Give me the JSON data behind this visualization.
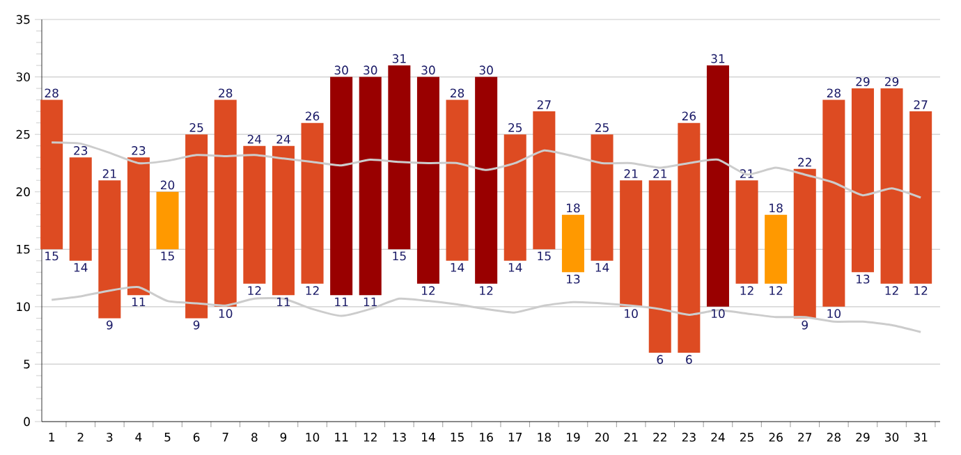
{
  "chart_data": {
    "type": "bar",
    "categories": [
      "1",
      "2",
      "3",
      "4",
      "5",
      "6",
      "7",
      "8",
      "9",
      "10",
      "11",
      "12",
      "13",
      "14",
      "15",
      "16",
      "17",
      "18",
      "19",
      "20",
      "21",
      "22",
      "23",
      "24",
      "25",
      "26",
      "27",
      "28",
      "29",
      "30",
      "31"
    ],
    "series": [
      {
        "values": [
          13,
          9,
          12,
          12,
          5,
          16,
          18,
          12,
          13,
          14,
          19,
          19,
          16,
          18,
          14,
          18,
          11,
          12,
          5,
          11,
          11,
          15,
          20,
          21,
          9,
          6,
          13,
          18,
          16,
          17,
          15
        ],
        "base": [
          15,
          14,
          9,
          11,
          15,
          9,
          10,
          12,
          11,
          12,
          11,
          11,
          15,
          12,
          14,
          12,
          14,
          15,
          13,
          14,
          10,
          6,
          6,
          10,
          12,
          12,
          9,
          10,
          13,
          12,
          12
        ],
        "colors": [
          "#dd4b22",
          "#dd4b22",
          "#dd4b22",
          "#dd4b22",
          "#ff9900",
          "#dd4b22",
          "#dd4b22",
          "#dd4b22",
          "#dd4b22",
          "#dd4b22",
          "#990000",
          "#990000",
          "#990000",
          "#990000",
          "#dd4b22",
          "#990000",
          "#dd4b22",
          "#dd4b22",
          "#ff9900",
          "#dd4b22",
          "#dd4b22",
          "#dd4b22",
          "#dd4b22",
          "#990000",
          "#dd4b22",
          "#ff9900",
          "#dd4b22",
          "#dd4b22",
          "#dd4b22",
          "#dd4b22",
          "#dd4b22"
        ],
        "value_labels": [
          "28",
          "23",
          "21",
          "23",
          "20",
          "25",
          "28",
          "24",
          "24",
          "26",
          "30",
          "30",
          "31",
          "30",
          "28",
          "30",
          "25",
          "27",
          "18",
          "25",
          "21",
          "21",
          "26",
          "31",
          "21",
          "18",
          "22",
          "28",
          "29",
          "29",
          "27"
        ]
      },
      {
        "type": "line",
        "color": "#cccccc",
        "values": [
          24.3,
          24.2,
          23.4,
          22.5,
          22.7,
          23.2,
          23.1,
          23.2,
          22.9,
          22.6,
          22.3,
          22.8,
          22.6,
          22.5,
          22.5,
          21.9,
          22.5,
          23.6,
          23.1,
          22.5,
          22.5,
          22.1,
          22.5,
          22.8,
          21.5,
          22.1,
          21.5,
          20.8,
          19.7,
          20.3,
          19.5
        ]
      },
      {
        "type": "line",
        "color": "#cccccc",
        "values": [
          10.6,
          10.9,
          11.4,
          11.7,
          10.5,
          10.3,
          10.1,
          10.7,
          10.7,
          9.8,
          9.2,
          9.8,
          10.7,
          10.5,
          10.2,
          9.8,
          9.5,
          10.1,
          10.4,
          10.3,
          10.1,
          9.8,
          9.3,
          9.7,
          9.4,
          9.1,
          9.1,
          8.7,
          8.7,
          8.4,
          7.8
        ]
      }
    ],
    "annotations": [
      {
        "text": "15",
        "x": "1",
        "y": 15
      },
      {
        "text": "14",
        "x": "2",
        "y": 14
      },
      {
        "text": "9",
        "x": "3",
        "y": 9
      },
      {
        "text": "11",
        "x": "4",
        "y": 11
      },
      {
        "text": "15",
        "x": "5",
        "y": 15
      },
      {
        "text": "9",
        "x": "6",
        "y": 9
      },
      {
        "text": "10",
        "x": "7",
        "y": 10
      },
      {
        "text": "12",
        "x": "8",
        "y": 12
      },
      {
        "text": "11",
        "x": "9",
        "y": 11
      },
      {
        "text": "12",
        "x": "10",
        "y": 12
      },
      {
        "text": "11",
        "x": "11",
        "y": 11
      },
      {
        "text": "11",
        "x": "12",
        "y": 11
      },
      {
        "text": "15",
        "x": "13",
        "y": 15
      },
      {
        "text": "12",
        "x": "14",
        "y": 12
      },
      {
        "text": "14",
        "x": "15",
        "y": 14
      },
      {
        "text": "12",
        "x": "16",
        "y": 12
      },
      {
        "text": "14",
        "x": "17",
        "y": 14
      },
      {
        "text": "15",
        "x": "18",
        "y": 15
      },
      {
        "text": "13",
        "x": "19",
        "y": 13
      },
      {
        "text": "14",
        "x": "20",
        "y": 14
      },
      {
        "text": "10",
        "x": "21",
        "y": 10
      },
      {
        "text": "6",
        "x": "22",
        "y": 6
      },
      {
        "text": "6",
        "x": "23",
        "y": 6
      },
      {
        "text": "10",
        "x": "24",
        "y": 10
      },
      {
        "text": "12",
        "x": "25",
        "y": 12
      },
      {
        "text": "12",
        "x": "26",
        "y": 12
      },
      {
        "text": "9",
        "x": "27",
        "y": 9
      },
      {
        "text": "10",
        "x": "28",
        "y": 10
      },
      {
        "text": "13",
        "x": "29",
        "y": 13
      },
      {
        "text": "12",
        "x": "30",
        "y": 12
      },
      {
        "text": "12",
        "x": "31",
        "y": 12
      }
    ],
    "ylim": [
      0,
      35
    ],
    "yticks": [
      0,
      5,
      10,
      15,
      20,
      25,
      30,
      35
    ],
    "grid": "y",
    "marker": "none"
  }
}
